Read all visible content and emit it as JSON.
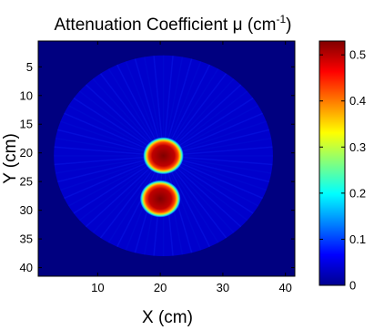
{
  "chart_data": {
    "type": "heatmap",
    "title": "Attenuation Coefficient μ (cm⁻¹)",
    "title_parts": {
      "main": "Attenuation Coefficient ",
      "symbol": "μ",
      "unit_open": " (cm",
      "unit_sup": "-1",
      "unit_close": ")"
    },
    "xlabel": "X (cm)",
    "ylabel": "Y (cm)",
    "xlim": [
      0.5,
      41.5
    ],
    "ylim": [
      0.5,
      41.5
    ],
    "y_reversed": true,
    "xticks": [
      10,
      20,
      30,
      40
    ],
    "yticks": [
      5,
      10,
      15,
      20,
      25,
      30,
      35,
      40
    ],
    "colorbar": {
      "colormap": "jet",
      "range": [
        0,
        0.53
      ],
      "ticks": [
        0,
        0.1,
        0.2,
        0.3,
        0.4,
        0.5
      ]
    },
    "background_value": 0.0,
    "disk": {
      "center": [
        20.5,
        20.5
      ],
      "radius": 17.5,
      "value": 0.04
    },
    "inclusions": [
      {
        "center": [
          20.5,
          20.5
        ],
        "radius": 2.6,
        "value": 0.53
      },
      {
        "center": [
          20.0,
          28.0
        ],
        "radius": 2.6,
        "value": 0.53
      }
    ]
  }
}
